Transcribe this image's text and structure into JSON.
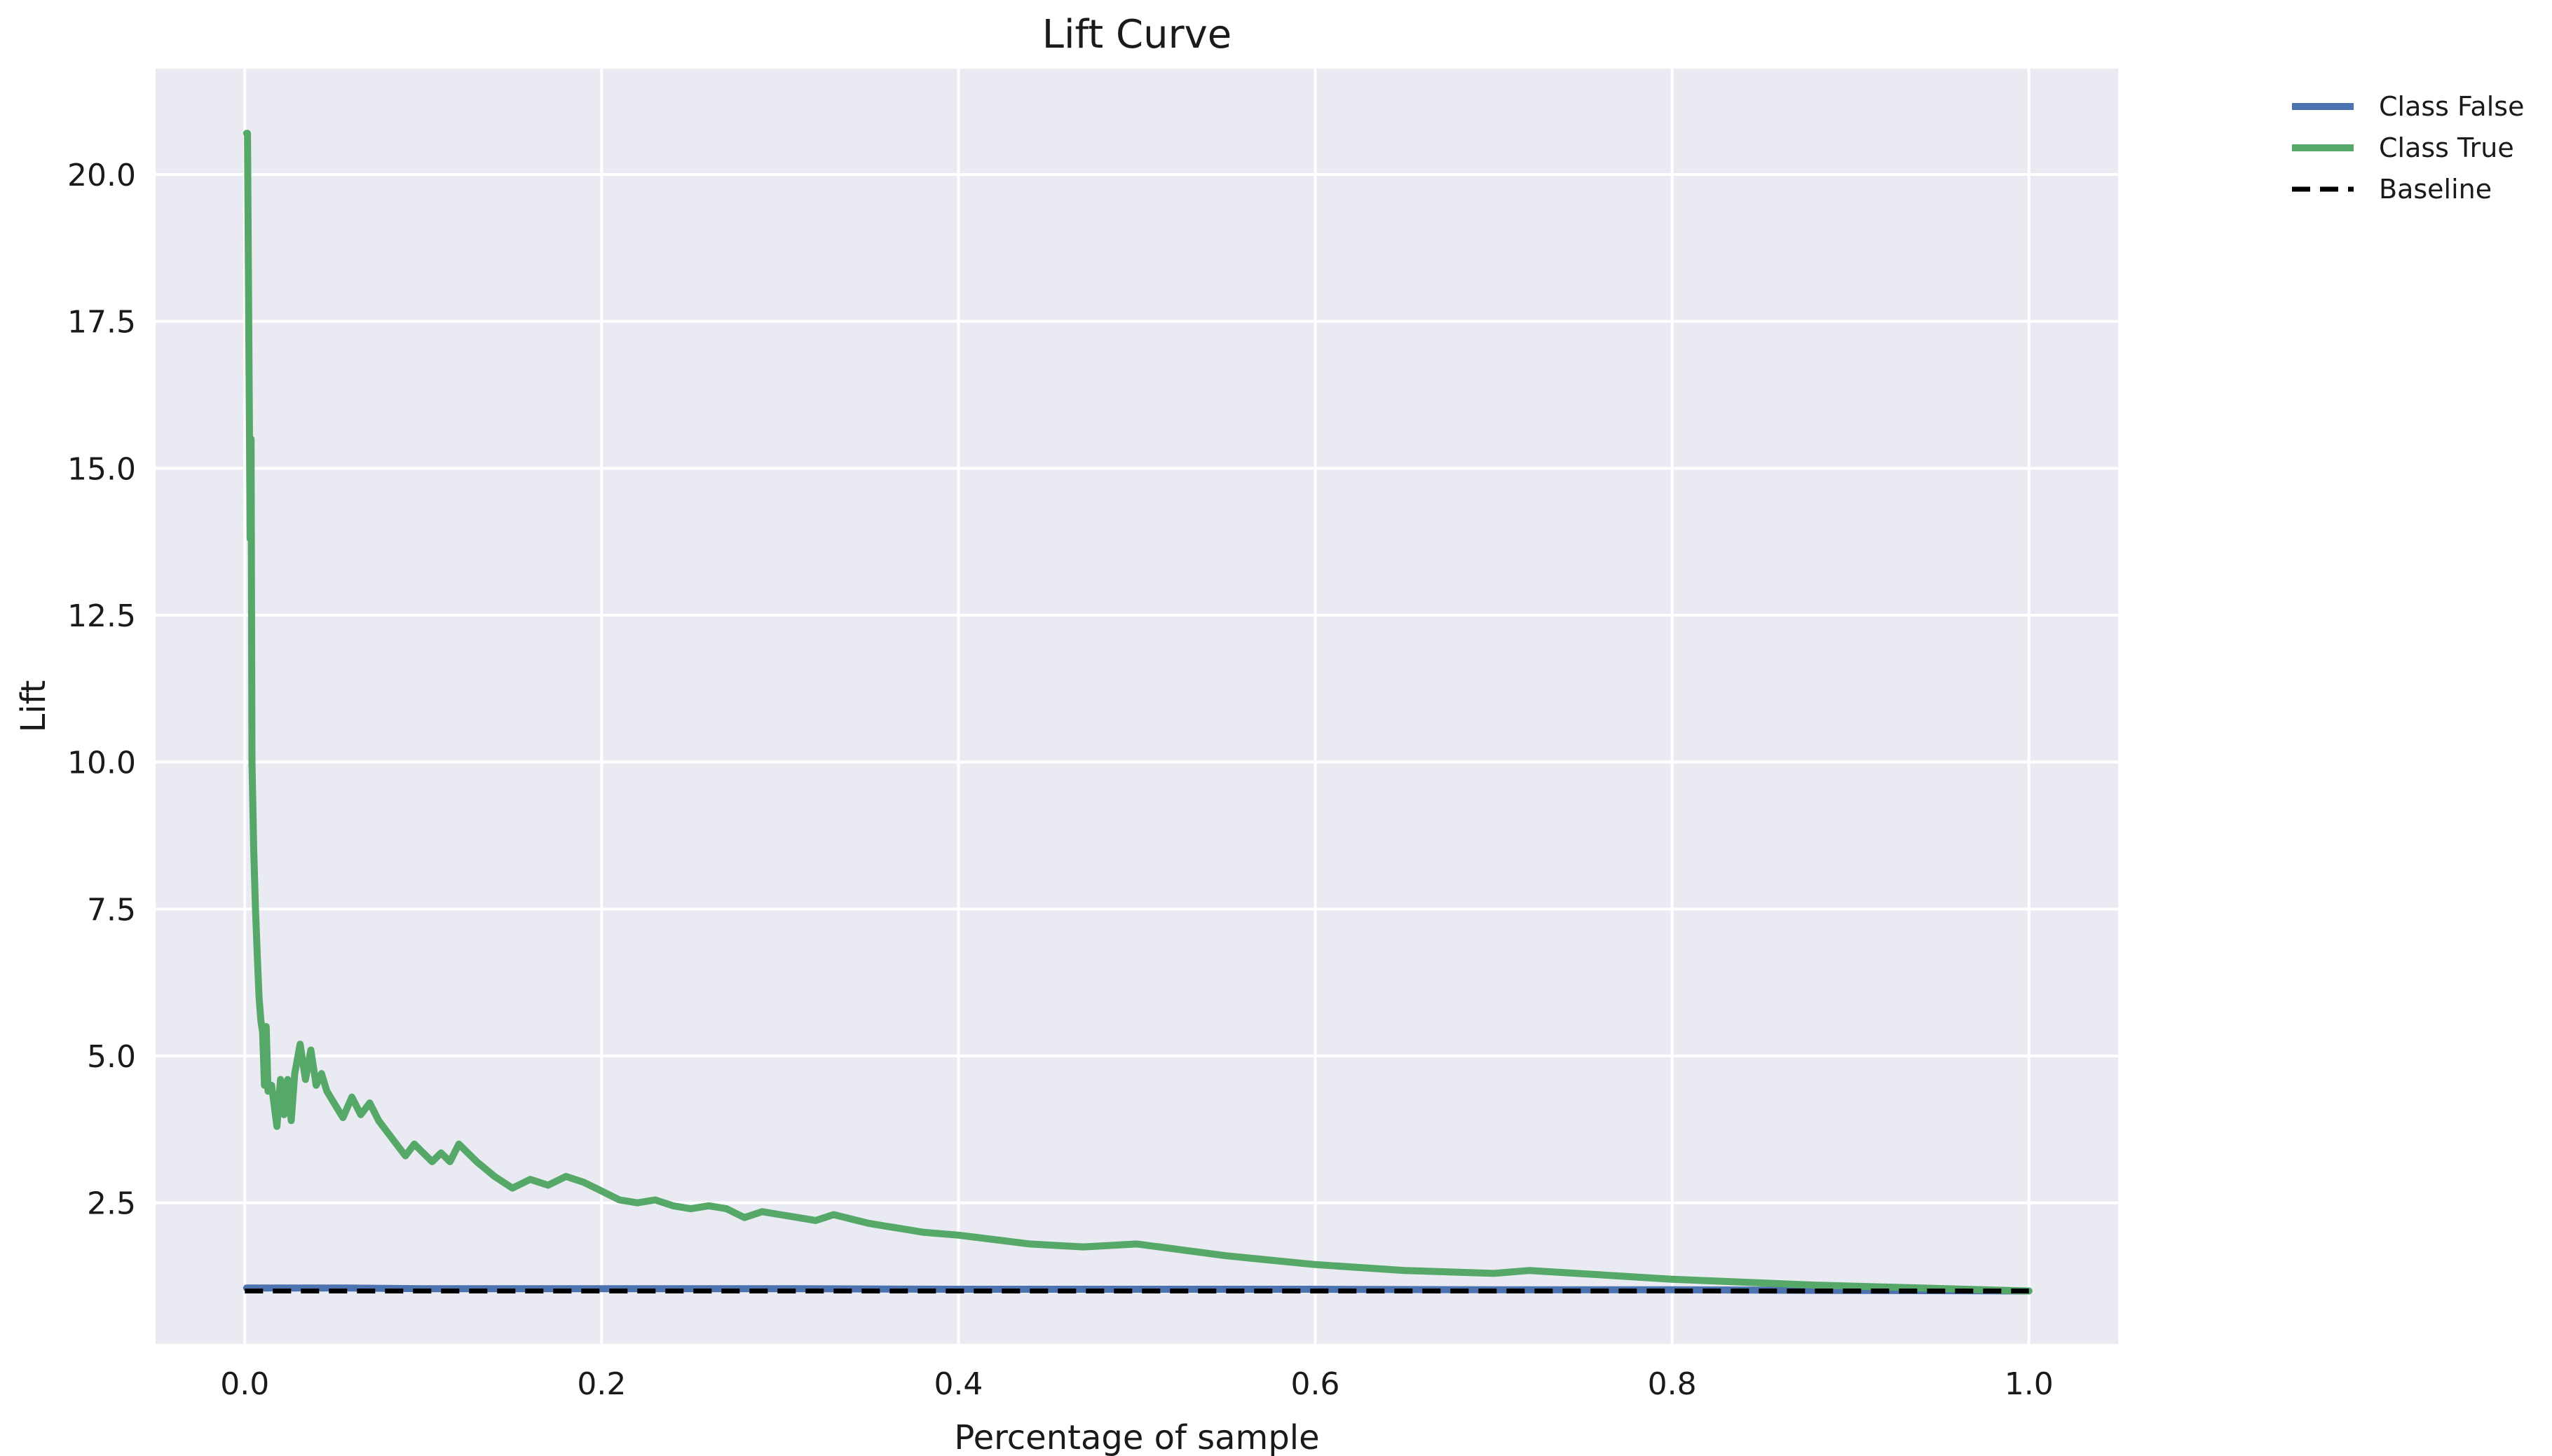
{
  "chart_data": {
    "type": "line",
    "title": "Lift Curve",
    "xlabel": "Percentage of sample",
    "ylabel": "Lift",
    "xlim": [
      -0.05,
      1.05
    ],
    "ylim": [
      0.1,
      21.8
    ],
    "xticks": [
      0.0,
      0.2,
      0.4,
      0.6,
      0.8,
      1.0
    ],
    "xtick_labels": [
      "0.0",
      "0.2",
      "0.4",
      "0.6",
      "0.8",
      "1.0"
    ],
    "yticks": [
      2.5,
      5.0,
      7.5,
      10.0,
      12.5,
      15.0,
      17.5,
      20.0
    ],
    "ytick_labels": [
      "2.5",
      "5.0",
      "7.5",
      "10.0",
      "12.5",
      "15.0",
      "17.5",
      "20.0"
    ],
    "grid": true,
    "legend_position": "outside-top-right",
    "background_color": "#eaeaf2",
    "grid_color": "#ffffff",
    "series": [
      {
        "name": "Class False",
        "color": "#4c72b0",
        "style": "solid",
        "x": [
          0.001,
          0.06,
          0.1,
          0.2,
          0.3,
          0.4,
          0.5,
          0.6,
          0.7,
          0.8,
          0.9,
          1.0
        ],
        "y": [
          1.05,
          1.05,
          1.04,
          1.04,
          1.04,
          1.03,
          1.03,
          1.03,
          1.02,
          1.02,
          1.01,
          1.0
        ]
      },
      {
        "name": "Class True",
        "color": "#55a868",
        "style": "solid",
        "x": [
          0.001,
          0.0015,
          0.003,
          0.0035,
          0.004,
          0.005,
          0.006,
          0.007,
          0.008,
          0.009,
          0.01,
          0.011,
          0.012,
          0.013,
          0.015,
          0.018,
          0.02,
          0.022,
          0.024,
          0.026,
          0.028,
          0.031,
          0.034,
          0.037,
          0.04,
          0.043,
          0.046,
          0.05,
          0.055,
          0.06,
          0.065,
          0.07,
          0.075,
          0.08,
          0.09,
          0.095,
          0.1,
          0.105,
          0.11,
          0.115,
          0.12,
          0.13,
          0.14,
          0.15,
          0.16,
          0.17,
          0.18,
          0.19,
          0.2,
          0.21,
          0.22,
          0.23,
          0.24,
          0.25,
          0.26,
          0.27,
          0.28,
          0.29,
          0.3,
          0.31,
          0.32,
          0.33,
          0.35,
          0.38,
          0.4,
          0.44,
          0.47,
          0.5,
          0.55,
          0.6,
          0.65,
          0.7,
          0.72,
          0.8,
          0.88,
          0.94,
          1.0
        ],
        "y": [
          20.7,
          20.7,
          13.8,
          15.5,
          10.0,
          8.5,
          7.5,
          6.7,
          6.0,
          5.6,
          5.4,
          4.5,
          5.5,
          4.4,
          4.5,
          3.8,
          4.6,
          4.0,
          4.6,
          3.9,
          4.7,
          5.2,
          4.6,
          5.1,
          4.5,
          4.7,
          4.4,
          4.2,
          3.95,
          4.3,
          4.0,
          4.2,
          3.9,
          3.7,
          3.3,
          3.5,
          3.35,
          3.2,
          3.35,
          3.2,
          3.5,
          3.2,
          2.95,
          2.75,
          2.9,
          2.8,
          2.95,
          2.85,
          2.7,
          2.55,
          2.5,
          2.55,
          2.45,
          2.4,
          2.45,
          2.4,
          2.25,
          2.35,
          2.3,
          2.25,
          2.2,
          2.3,
          2.15,
          2.0,
          1.95,
          1.8,
          1.75,
          1.8,
          1.6,
          1.45,
          1.35,
          1.3,
          1.35,
          1.2,
          1.1,
          1.05,
          1.0
        ]
      },
      {
        "name": "Baseline",
        "color": "#000000",
        "style": "dashed",
        "x": [
          0.0,
          1.0
        ],
        "y": [
          1.0,
          1.0
        ]
      }
    ]
  }
}
